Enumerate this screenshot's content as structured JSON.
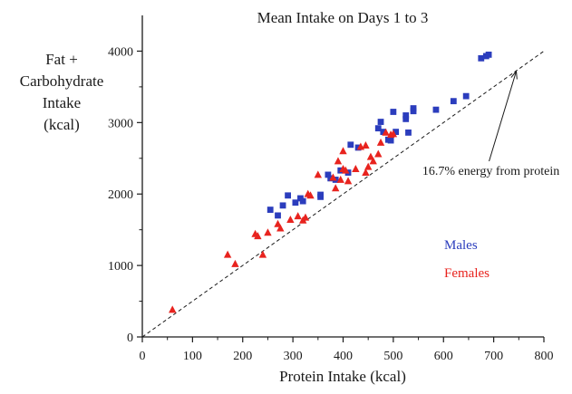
{
  "chart_data": {
    "type": "scatter",
    "title": "Mean Intake on Days 1 to 3",
    "xlabel": "Protein Intake (kcal)",
    "ylabel_lines": [
      "Fat +",
      "Carbohydrate",
      "Intake",
      "(kcal)"
    ],
    "xlim": [
      0,
      800
    ],
    "ylim": [
      0,
      4500
    ],
    "xticks": [
      "0",
      "100",
      "200",
      "300",
      "400",
      "500",
      "600",
      "700",
      "800"
    ],
    "yticks": [
      "0",
      "1000",
      "2000",
      "3000",
      "4000"
    ],
    "grid": false,
    "legend_placement": "bottom-right",
    "series": [
      {
        "name": "Males",
        "marker": "square",
        "color": "#2b3dbd",
        "points": [
          [
            255,
            1780
          ],
          [
            270,
            1700
          ],
          [
            280,
            1840
          ],
          [
            290,
            1980
          ],
          [
            305,
            1880
          ],
          [
            315,
            1940
          ],
          [
            320,
            1900
          ],
          [
            355,
            1960
          ],
          [
            355,
            1990
          ],
          [
            370,
            2270
          ],
          [
            375,
            2220
          ],
          [
            385,
            2200
          ],
          [
            395,
            2330
          ],
          [
            410,
            2300
          ],
          [
            415,
            2690
          ],
          [
            430,
            2650
          ],
          [
            470,
            2920
          ],
          [
            475,
            3010
          ],
          [
            480,
            2870
          ],
          [
            490,
            2760
          ],
          [
            495,
            2750
          ],
          [
            500,
            3150
          ],
          [
            505,
            2870
          ],
          [
            525,
            3050
          ],
          [
            525,
            3100
          ],
          [
            530,
            2860
          ],
          [
            540,
            3160
          ],
          [
            540,
            3200
          ],
          [
            585,
            3180
          ],
          [
            620,
            3300
          ],
          [
            645,
            3370
          ],
          [
            675,
            3900
          ],
          [
            685,
            3930
          ],
          [
            690,
            3950
          ]
        ]
      },
      {
        "name": "Females",
        "marker": "triangle",
        "color": "#e8231e",
        "points": [
          [
            60,
            380
          ],
          [
            170,
            1150
          ],
          [
            185,
            1020
          ],
          [
            225,
            1440
          ],
          [
            230,
            1410
          ],
          [
            240,
            1150
          ],
          [
            250,
            1460
          ],
          [
            270,
            1580
          ],
          [
            275,
            1520
          ],
          [
            295,
            1640
          ],
          [
            310,
            1690
          ],
          [
            320,
            1630
          ],
          [
            325,
            1670
          ],
          [
            330,
            2000
          ],
          [
            335,
            1980
          ],
          [
            350,
            2270
          ],
          [
            380,
            2230
          ],
          [
            385,
            2080
          ],
          [
            390,
            2460
          ],
          [
            395,
            2200
          ],
          [
            400,
            2600
          ],
          [
            400,
            2350
          ],
          [
            405,
            2330
          ],
          [
            410,
            2180
          ],
          [
            425,
            2350
          ],
          [
            435,
            2660
          ],
          [
            445,
            2680
          ],
          [
            445,
            2300
          ],
          [
            450,
            2380
          ],
          [
            455,
            2520
          ],
          [
            460,
            2460
          ],
          [
            470,
            2560
          ],
          [
            475,
            2720
          ],
          [
            485,
            2860
          ],
          [
            495,
            2830
          ],
          [
            500,
            2840
          ]
        ]
      }
    ],
    "reference_line": {
      "style": "dashed",
      "from": [
        0,
        0
      ],
      "to": [
        800,
        4000
      ],
      "label": "16.7% energy from protein",
      "arrow_tip": [
        745,
        3720
      ]
    }
  }
}
